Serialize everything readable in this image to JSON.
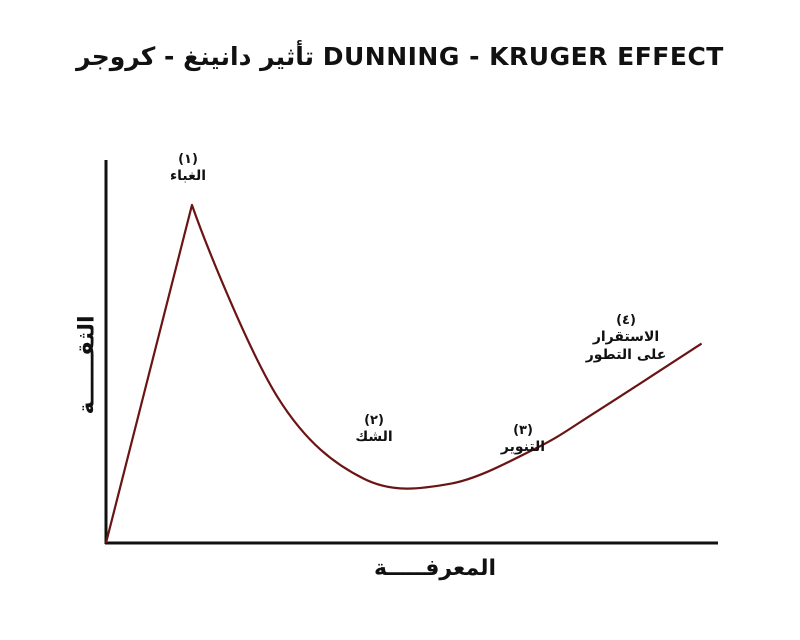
{
  "chart_data": {
    "type": "line",
    "title": "تأثير دانينغ - كروجر DUNNING - KRUGER EFFECT",
    "xlabel": "المعرفـــــة",
    "ylabel": "الثقــــــة",
    "grid": false,
    "legend": "none",
    "line_color": "#6b1414",
    "axis_color": "#111111",
    "series": [
      {
        "points": [
          {
            "x": 0,
            "y": 0
          },
          {
            "x": 14,
            "y": 100
          },
          {
            "x": 28,
            "y": 43
          },
          {
            "x": 42,
            "y": 19
          },
          {
            "x": 56,
            "y": 17.5
          },
          {
            "x": 70,
            "y": 28
          },
          {
            "x": 80,
            "y": 39
          },
          {
            "x": 97,
            "y": 59
          }
        ]
      }
    ],
    "annotations": [
      {
        "number": "(١)",
        "label": "الغباء"
      },
      {
        "number": "(٢)",
        "label": "الشك"
      },
      {
        "number": "(٣)",
        "label": "التنوير"
      },
      {
        "number": "(٤)",
        "label": "الاستقرار على التطور"
      }
    ]
  }
}
